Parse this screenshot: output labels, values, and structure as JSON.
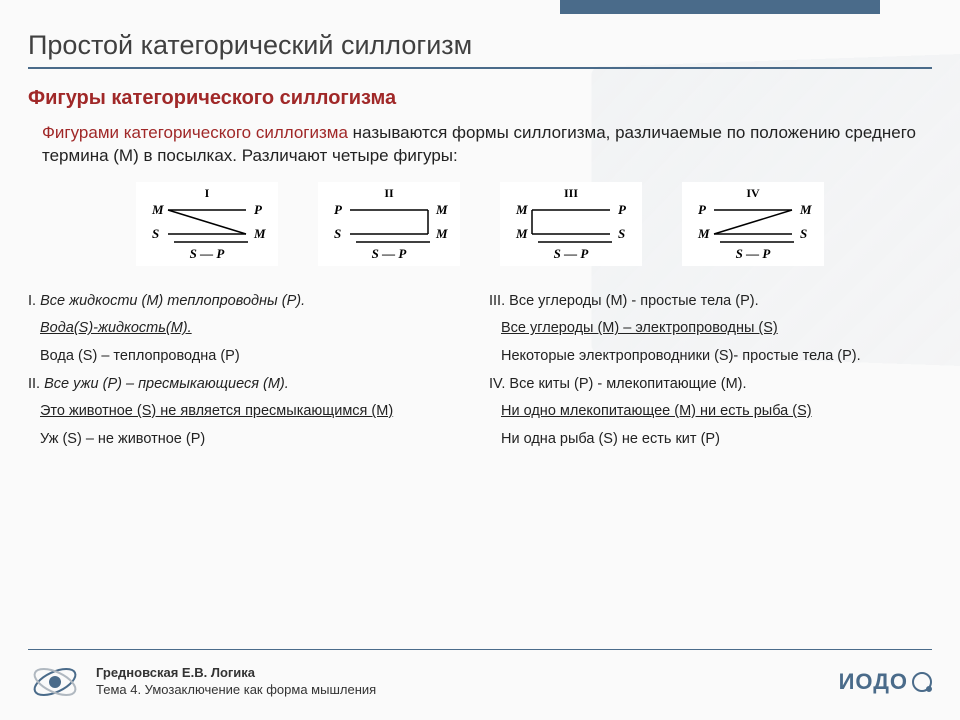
{
  "colors": {
    "accent": "#4a6b8a",
    "heading": "#a02828",
    "text": "#222222",
    "title": "#404040",
    "background": "#fafafa"
  },
  "title": "Простой категорический силлогизм",
  "subtitle": "Фигуры категорического силлогизма",
  "intro_em": "Фигурами категорического силлогизма",
  "intro_rest": " называются формы силлогизма, различаемые по положению среднего термина (М) в посылках. Различают четыре фигуры:",
  "figures": [
    {
      "roman": "I",
      "top_left": "M",
      "top_right": "P",
      "bot_left": "S",
      "bot_right": "M",
      "concl_left": "S",
      "concl_right": "P",
      "diag": "tl-br"
    },
    {
      "roman": "II",
      "top_left": "P",
      "top_right": "M",
      "bot_left": "S",
      "bot_right": "M",
      "concl_left": "S",
      "concl_right": "P",
      "diag": "right-vert"
    },
    {
      "roman": "III",
      "top_left": "M",
      "top_right": "P",
      "bot_left": "M",
      "bot_right": "S",
      "concl_left": "S",
      "concl_right": "P",
      "diag": "left-vert"
    },
    {
      "roman": "IV",
      "top_left": "P",
      "top_right": "M",
      "bot_left": "M",
      "bot_right": "S",
      "concl_left": "S",
      "concl_right": "P",
      "diag": "tr-bl"
    }
  ],
  "left": {
    "i_lead": "I.",
    "i1": " Все жидкости (М) теплопроводны (Р).",
    "i2": "Вода(S)-жидкость(М).",
    "i3": "Вода (S) – теплопроводна (Р)",
    "ii_lead": "II.",
    "ii1": " Все ужи (Р) – пресмыкающиеся (М).",
    "ii2": "Это животное (S) не является пресмыкающимся (М)",
    "ii3": "Уж (S) – не животное (Р)"
  },
  "right": {
    "iii_lead": "III.",
    "iii1": " Все углероды (М) -  простые тела (Р).",
    "iii2": "Все углероды (М) – электропроводны (S)",
    "iii3": "Некоторые электропроводники (S)- простые тела (Р).",
    "iv_lead": "IV.",
    "iv1": " Все киты (Р) -  млекопитающие (М).",
    "iv2": "Ни одно млекопитающее (М) ни есть рыба (S)",
    "iv3": "Ни одна рыба (S) не есть кит (Р)"
  },
  "footer": {
    "author": "Гредновская Е.В. Логика",
    "topic": "Тема 4. Умозаключение как форма мышления",
    "brand": "ИОДО"
  }
}
